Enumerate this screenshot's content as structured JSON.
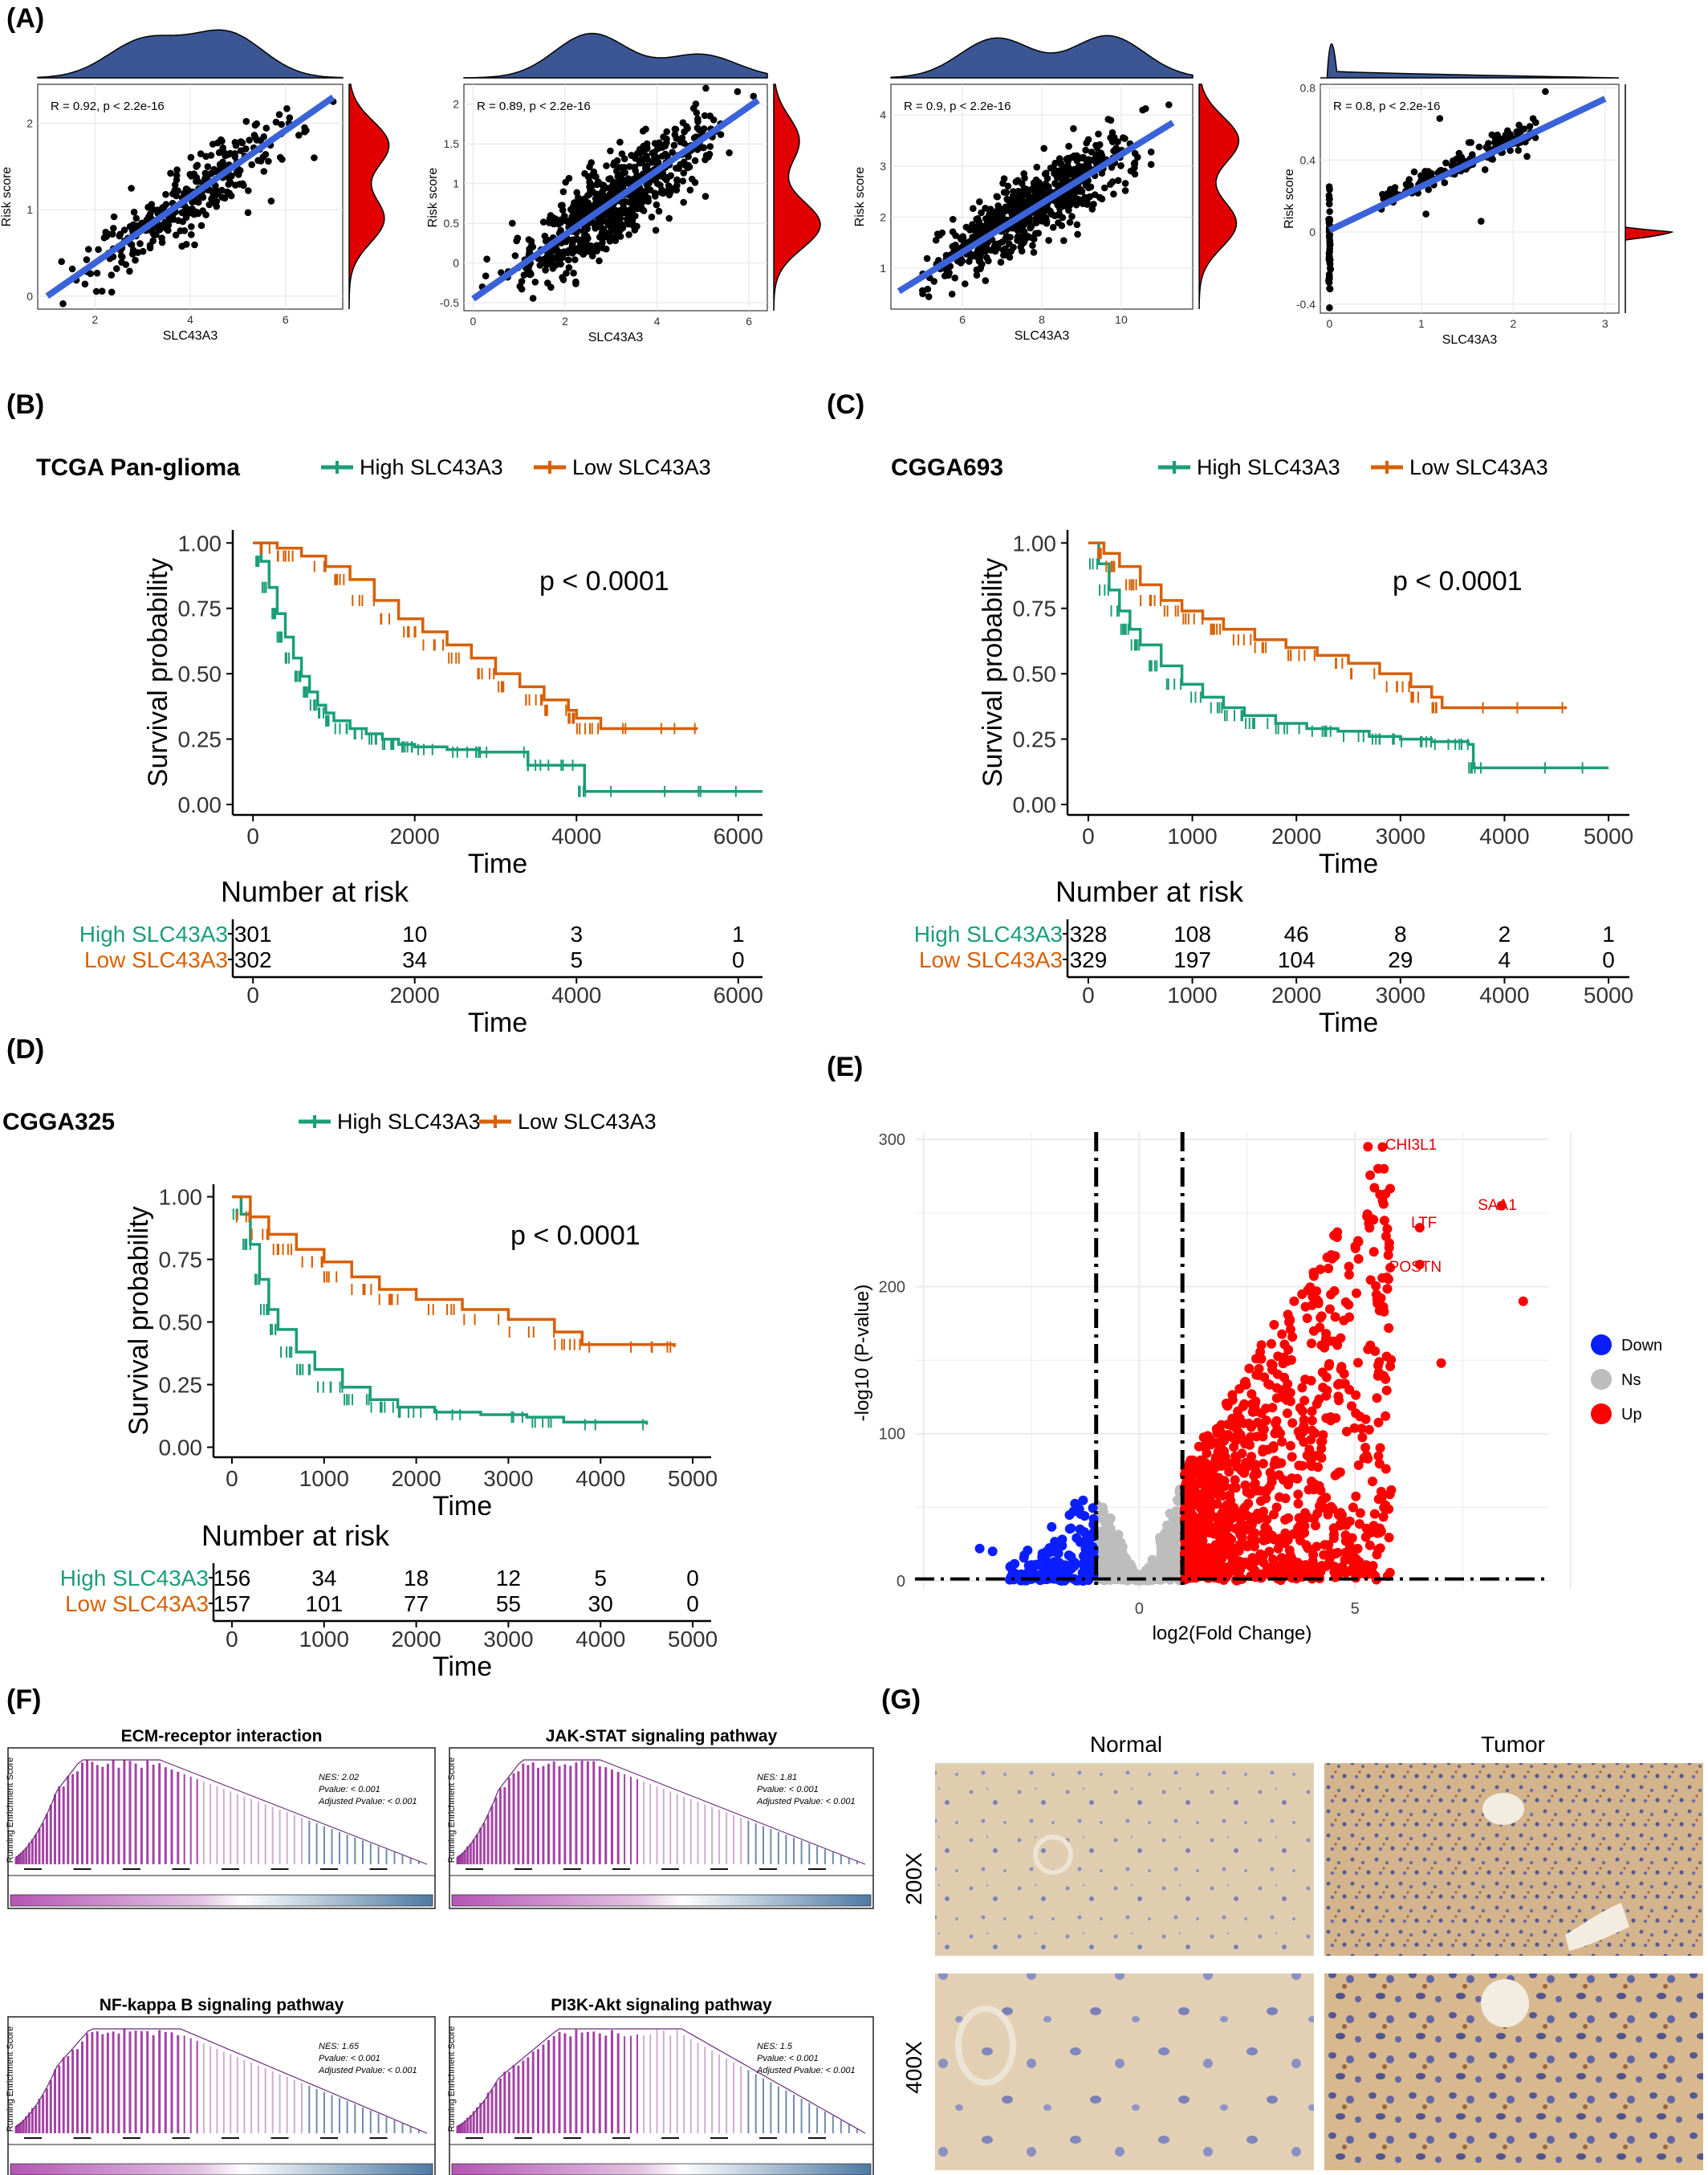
{
  "panel_labels": {
    "A": "(A)",
    "B": "(B)",
    "C": "(C)",
    "D": "(D)",
    "E": "(E)",
    "F": "(F)",
    "G": "(G)"
  },
  "colors": {
    "high": "#1b9e77",
    "low": "#d95f02",
    "density_top": "#3b5693",
    "density_right": "#e00000",
    "fit_line": "#3a63d9",
    "down": "#0a1eff",
    "ns": "#bdbdbd",
    "up": "#ff0000"
  },
  "chart_data": [
    {
      "id": "A1",
      "type": "scatter",
      "annotation": "R = 0.92, p < 2.2e-16",
      "xlabel": "SLC43A3",
      "ylabel": "Risk score",
      "xlim": [
        0.8,
        7.2
      ],
      "ylim": [
        -0.15,
        2.45
      ],
      "xticks": [
        2,
        4,
        6
      ],
      "yticks": [
        0,
        1,
        2
      ],
      "fit": [
        [
          1,
          0
        ],
        [
          7,
          2.3
        ]
      ],
      "n_points": 300,
      "noise": 0.2,
      "highlights": [
        [
          1.3,
          0.4
        ],
        [
          6.4,
          1.9
        ],
        [
          6.6,
          1.6
        ],
        [
          7.0,
          2.25
        ],
        [
          5.7,
          1.1
        ],
        [
          5.1,
          1.3
        ]
      ]
    },
    {
      "id": "A2",
      "type": "scatter",
      "annotation": "R = 0.89, p < 2.2e-16",
      "xlabel": "SLC43A3",
      "ylabel": "Risk score",
      "xlim": [
        -0.2,
        6.4
      ],
      "ylim": [
        -0.6,
        2.25
      ],
      "xticks": [
        0,
        2,
        4,
        6
      ],
      "yticks": [
        -0.5,
        0.0,
        0.5,
        1.0,
        1.5,
        2.0
      ],
      "fit": [
        [
          0,
          -0.45
        ],
        [
          6.2,
          2.05
        ]
      ],
      "n_points": 650,
      "noise": 0.28,
      "highlights": [
        [
          6.1,
          2.1
        ],
        [
          0.2,
          -0.3
        ],
        [
          0.3,
          0.05
        ]
      ]
    },
    {
      "id": "A3",
      "type": "scatter",
      "annotation": "R = 0.9, p < 2.2e-16",
      "xlabel": "SLC43A3",
      "ylabel": "Risk score",
      "xlim": [
        4.2,
        11.8
      ],
      "ylim": [
        0.2,
        4.6
      ],
      "xticks": [
        6,
        8,
        10
      ],
      "yticks": [
        1,
        2,
        3,
        4
      ],
      "fit": [
        [
          4.4,
          0.55
        ],
        [
          11.3,
          3.85
        ]
      ],
      "n_points": 650,
      "noise": 0.33,
      "highlights": [
        [
          11.2,
          4.2
        ],
        [
          5.0,
          0.5
        ]
      ]
    },
    {
      "id": "A4",
      "type": "scatter",
      "annotation": "R = 0.8, p < 2.2e-16",
      "xlabel": "SLC43A3",
      "ylabel": "Risk score",
      "xlim": [
        -0.1,
        3.15
      ],
      "ylim": [
        -0.45,
        0.82
      ],
      "xticks": [
        0,
        1,
        2,
        3
      ],
      "yticks": [
        -0.4,
        0.0,
        0.4,
        0.8
      ],
      "fit": [
        [
          0,
          0.01
        ],
        [
          3,
          0.74
        ]
      ],
      "n_points": 140,
      "noise": 0.04,
      "zero_cluster": true,
      "highlights": [
        [
          2.35,
          0.78
        ],
        [
          1.2,
          0.63
        ],
        [
          1.05,
          0.1
        ],
        [
          1.65,
          0.06
        ],
        [
          2.15,
          0.42
        ],
        [
          0,
          -0.42
        ]
      ]
    },
    {
      "id": "B",
      "type": "line",
      "title": "TCGA Pan-glioma",
      "xlabel": "Time",
      "ylabel": "Survival probability",
      "xlim": [
        -250,
        6300
      ],
      "ylim": [
        -0.04,
        1.05
      ],
      "xticks": [
        0,
        2000,
        4000,
        6000
      ],
      "yticks": [
        "0.00",
        "0.25",
        "0.50",
        "0.75",
        "1.00"
      ],
      "pval": "p < 0.0001",
      "series": [
        {
          "name": "High SLC43A3",
          "curve": [
            [
              0,
              1.0
            ],
            [
              100,
              0.93
            ],
            [
              200,
              0.83
            ],
            [
              300,
              0.73
            ],
            [
              400,
              0.64
            ],
            [
              500,
              0.56
            ],
            [
              600,
              0.49
            ],
            [
              700,
              0.43
            ],
            [
              800,
              0.38
            ],
            [
              900,
              0.35
            ],
            [
              1000,
              0.32
            ],
            [
              1200,
              0.29
            ],
            [
              1400,
              0.27
            ],
            [
              1600,
              0.25
            ],
            [
              1800,
              0.23
            ],
            [
              2000,
              0.22
            ],
            [
              2400,
              0.21
            ],
            [
              2800,
              0.2
            ],
            [
              3400,
              0.2
            ],
            [
              3400,
              0.15
            ],
            [
              4000,
              0.15
            ],
            [
              4100,
              0.05
            ],
            [
              6300,
              0.05
            ]
          ]
        },
        {
          "name": "Low SLC43A3",
          "curve": [
            [
              0,
              1.0
            ],
            [
              300,
              0.98
            ],
            [
              600,
              0.95
            ],
            [
              900,
              0.91
            ],
            [
              1200,
              0.86
            ],
            [
              1500,
              0.78
            ],
            [
              1800,
              0.71
            ],
            [
              2100,
              0.66
            ],
            [
              2400,
              0.61
            ],
            [
              2700,
              0.56
            ],
            [
              3000,
              0.5
            ],
            [
              3300,
              0.45
            ],
            [
              3600,
              0.4
            ],
            [
              3900,
              0.36
            ],
            [
              4000,
              0.33
            ],
            [
              4300,
              0.29
            ],
            [
              5500,
              0.29
            ]
          ]
        }
      ],
      "risk_table": {
        "title": "Number at risk",
        "times": [
          0,
          2000,
          4000,
          6000
        ],
        "rows": [
          {
            "label": "High SLC43A3",
            "values": [
              "301",
              "10",
              "3",
              "1"
            ]
          },
          {
            "label": "Low SLC43A3",
            "values": [
              "302",
              "34",
              "5",
              "0"
            ]
          }
        ],
        "xlabel": "Time"
      }
    },
    {
      "id": "C",
      "type": "line",
      "title": "CGGA693",
      "xlabel": "Time",
      "ylabel": "Survival probability",
      "xlim": [
        -200,
        5200
      ],
      "ylim": [
        -0.04,
        1.05
      ],
      "xticks": [
        0,
        1000,
        2000,
        3000,
        4000,
        5000
      ],
      "yticks": [
        "0.00",
        "0.25",
        "0.50",
        "0.75",
        "1.00"
      ],
      "pval": "p < 0.0001",
      "series": [
        {
          "name": "High SLC43A3",
          "curve": [
            [
              0,
              1.0
            ],
            [
              100,
              0.92
            ],
            [
              200,
              0.82
            ],
            [
              300,
              0.74
            ],
            [
              400,
              0.67
            ],
            [
              500,
              0.61
            ],
            [
              700,
              0.53
            ],
            [
              900,
              0.46
            ],
            [
              1100,
              0.41
            ],
            [
              1300,
              0.37
            ],
            [
              1500,
              0.34
            ],
            [
              1800,
              0.31
            ],
            [
              2100,
              0.29
            ],
            [
              2400,
              0.28
            ],
            [
              2700,
              0.26
            ],
            [
              3000,
              0.25
            ],
            [
              3300,
              0.24
            ],
            [
              3650,
              0.23
            ],
            [
              3700,
              0.14
            ],
            [
              5000,
              0.14
            ]
          ]
        },
        {
          "name": "Low SLC43A3",
          "curve": [
            [
              0,
              1.0
            ],
            [
              150,
              0.96
            ],
            [
              300,
              0.91
            ],
            [
              500,
              0.84
            ],
            [
              700,
              0.78
            ],
            [
              900,
              0.74
            ],
            [
              1100,
              0.71
            ],
            [
              1300,
              0.67
            ],
            [
              1600,
              0.63
            ],
            [
              1900,
              0.6
            ],
            [
              2200,
              0.57
            ],
            [
              2500,
              0.54
            ],
            [
              2800,
              0.5
            ],
            [
              3100,
              0.45
            ],
            [
              3300,
              0.41
            ],
            [
              3400,
              0.37
            ],
            [
              4600,
              0.37
            ]
          ]
        }
      ],
      "risk_table": {
        "title": "Number at risk",
        "times": [
          0,
          1000,
          2000,
          3000,
          4000,
          5000
        ],
        "rows": [
          {
            "label": "High SLC43A3",
            "values": [
              "328",
              "108",
              "46",
              "8",
              "2",
              "1"
            ]
          },
          {
            "label": "Low SLC43A3",
            "values": [
              "329",
              "197",
              "104",
              "29",
              "4",
              "0"
            ]
          }
        ],
        "xlabel": "Time"
      }
    },
    {
      "id": "D",
      "type": "line",
      "title": "CGGA325",
      "xlabel": "Time",
      "ylabel": "Survival probability",
      "xlim": [
        -200,
        5200
      ],
      "ylim": [
        -0.04,
        1.05
      ],
      "xticks": [
        0,
        1000,
        2000,
        3000,
        4000,
        5000
      ],
      "yticks": [
        "0.00",
        "0.25",
        "0.50",
        "0.75",
        "1.00"
      ],
      "pval": "p < 0.0001",
      "series": [
        {
          "name": "High SLC43A3",
          "curve": [
            [
              0,
              1.0
            ],
            [
              100,
              0.93
            ],
            [
              200,
              0.81
            ],
            [
              300,
              0.67
            ],
            [
              400,
              0.55
            ],
            [
              500,
              0.47
            ],
            [
              700,
              0.38
            ],
            [
              900,
              0.31
            ],
            [
              1200,
              0.24
            ],
            [
              1500,
              0.19
            ],
            [
              1800,
              0.16
            ],
            [
              2200,
              0.14
            ],
            [
              2700,
              0.13
            ],
            [
              3200,
              0.12
            ],
            [
              3600,
              0.1
            ],
            [
              4500,
              0.09
            ]
          ]
        },
        {
          "name": "Low SLC43A3",
          "curve": [
            [
              0,
              1.0
            ],
            [
              200,
              0.92
            ],
            [
              400,
              0.85
            ],
            [
              700,
              0.79
            ],
            [
              1000,
              0.74
            ],
            [
              1300,
              0.68
            ],
            [
              1600,
              0.63
            ],
            [
              2000,
              0.59
            ],
            [
              2500,
              0.55
            ],
            [
              3000,
              0.51
            ],
            [
              3500,
              0.46
            ],
            [
              3800,
              0.41
            ],
            [
              4800,
              0.4
            ]
          ]
        }
      ],
      "risk_table": {
        "title": "Number at risk",
        "times": [
          0,
          1000,
          2000,
          3000,
          4000,
          5000
        ],
        "rows": [
          {
            "label": "High SLC43A3",
            "values": [
              "156",
              "34",
              "18",
              "12",
              "5",
              "0"
            ]
          },
          {
            "label": "Low SLC43A3",
            "values": [
              "157",
              "101",
              "77",
              "55",
              "30",
              "0"
            ]
          }
        ],
        "xlabel": "Time"
      }
    },
    {
      "id": "E",
      "type": "scatter",
      "xlabel": "log2(Fold Change)",
      "ylabel": "-log10 (P-value)",
      "xlim": [
        -5.2,
        9.5
      ],
      "ylim": [
        -6,
        305
      ],
      "xticks": [
        0,
        5
      ],
      "yticks": [
        0,
        100,
        200,
        300
      ],
      "thresholds": {
        "x": [
          -1,
          1
        ],
        "y": 1.3
      },
      "legend": [
        {
          "name": "Down",
          "color": "#0a1eff"
        },
        {
          "name": "Ns",
          "color": "#bdbdbd"
        },
        {
          "name": "Up",
          "color": "#ff0000"
        }
      ],
      "labels": [
        {
          "text": "CHI3L1",
          "x": 6.3,
          "y": 293
        },
        {
          "text": "LTF",
          "x": 6.6,
          "y": 240
        },
        {
          "text": "SAA1",
          "x": 8.3,
          "y": 252
        },
        {
          "text": "POSTN",
          "x": 6.4,
          "y": 210
        }
      ],
      "highlights": [
        [
          5.3,
          295
        ],
        [
          6.5,
          240
        ],
        [
          8.4,
          255
        ],
        [
          6.5,
          215
        ],
        [
          8.9,
          190
        ],
        [
          7.0,
          148
        ],
        [
          -3.7,
          22
        ],
        [
          -3.4,
          20
        ]
      ]
    },
    {
      "id": "F",
      "type": "line",
      "ylabel": "Running Enrichment Score",
      "plots": [
        {
          "title": "ECM-receptor interaction",
          "nes": "NES: 2.02",
          "pvalue": "Pvalue: < 0.001",
          "adj": "Adjusted Pvalue: < 0.001"
        },
        {
          "title": "JAK-STAT signaling pathway",
          "nes": "NES: 1.81",
          "pvalue": "Pvalue: < 0.001",
          "adj": "Adjusted Pvalue: < 0.001"
        },
        {
          "title": "NF-kappa B signaling pathway",
          "nes": "NES: 1.65",
          "pvalue": "Pvalue: < 0.001",
          "adj": "Adjusted Pvalue: < 0.001"
        },
        {
          "title": "PI3K-Akt signaling pathway",
          "nes": "NES: 1.5",
          "pvalue": "Pvalue: < 0.001",
          "adj": "Adjusted Pvalue: < 0.001"
        }
      ]
    }
  ],
  "panel_g": {
    "columns": [
      "Normal",
      "Tumor"
    ],
    "rows": [
      "200X",
      "400X"
    ]
  }
}
